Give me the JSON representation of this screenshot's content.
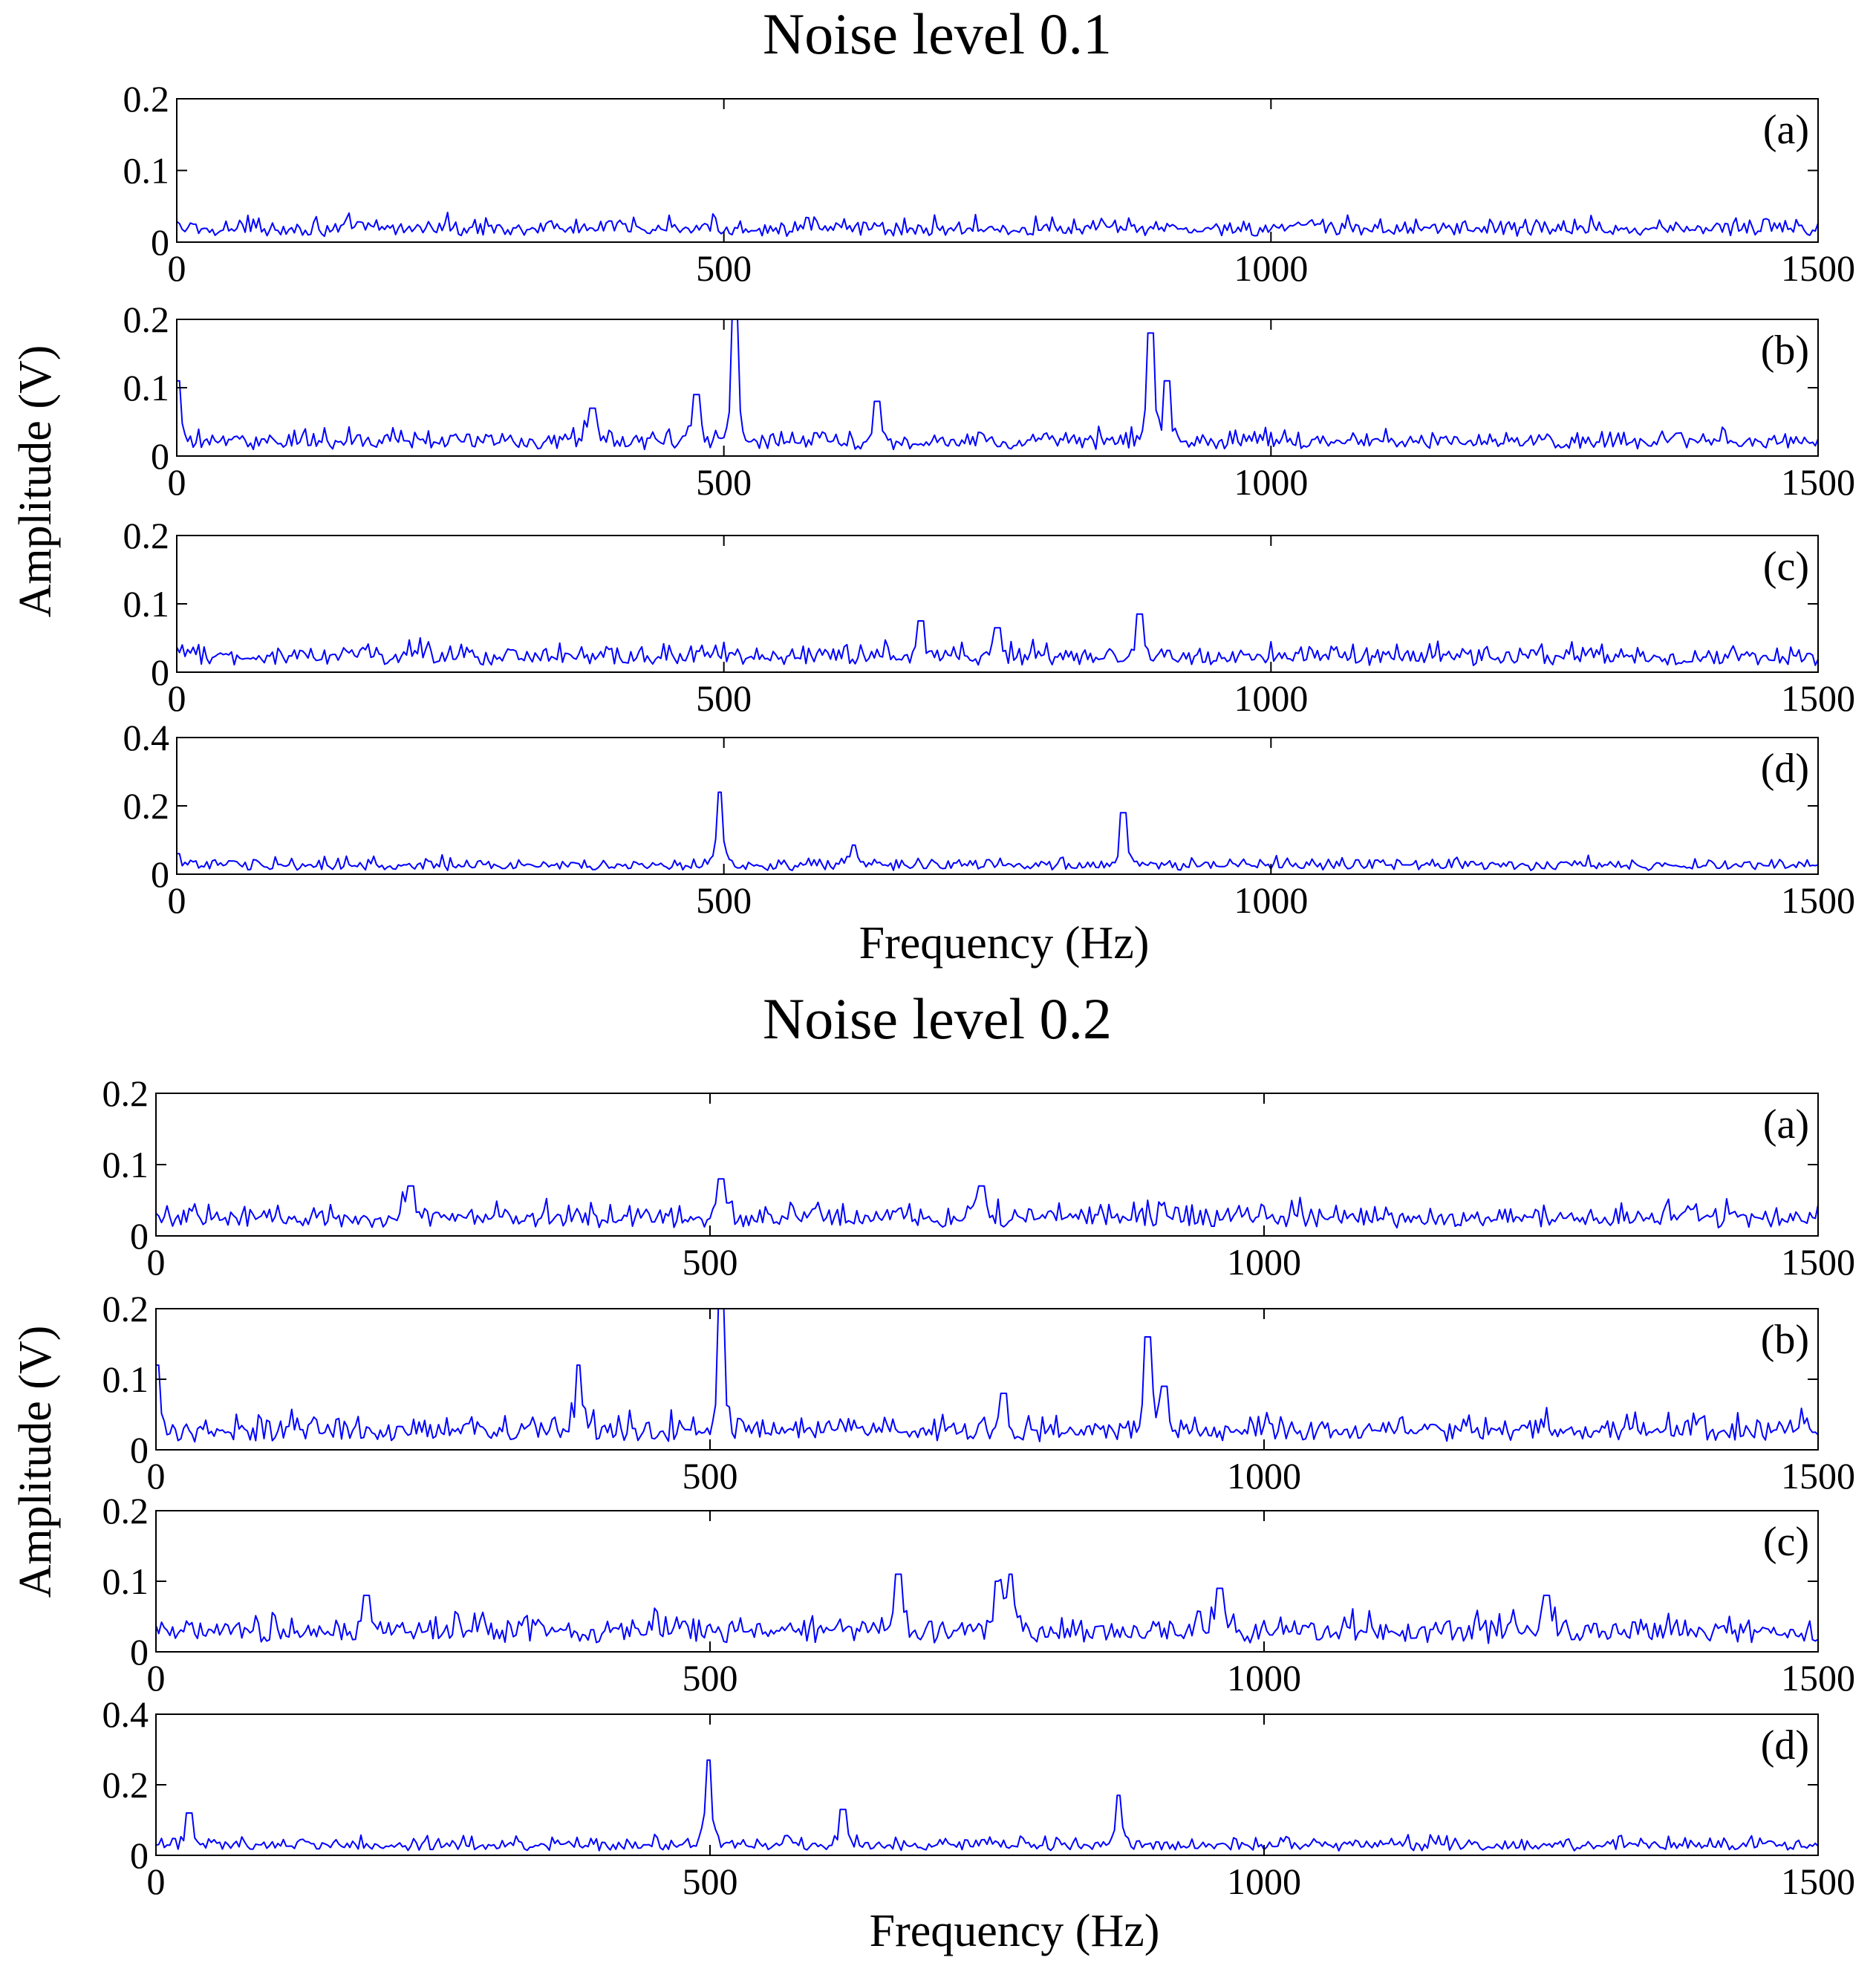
{
  "chart_data": [
    {
      "group": "noise-0.1",
      "title": "Noise level 0.1",
      "xlabel": "Frequency (Hz)",
      "ylabel": "Amplitude (V)",
      "type": "line",
      "line_color": "#0000ff",
      "xlim": [
        0,
        1500
      ],
      "xticks": [
        "0",
        "500",
        "1000",
        "1500"
      ],
      "panels": [
        {
          "label": "(a)",
          "ylim": [
            0,
            0.2
          ],
          "yticks": [
            "0",
            "0.1",
            "0.2"
          ],
          "noise": 0.022,
          "peaks": []
        },
        {
          "label": "(b)",
          "ylim": [
            0,
            0.2
          ],
          "yticks": [
            "0",
            "0.1",
            "0.2"
          ],
          "noise": 0.025,
          "peaks": [
            {
              "x": 0,
              "y": 0.11
            },
            {
              "x": 380,
              "y": 0.07
            },
            {
              "x": 475,
              "y": 0.09
            },
            {
              "x": 510,
              "y": 0.2
            },
            {
              "x": 640,
              "y": 0.08
            },
            {
              "x": 890,
              "y": 0.18
            },
            {
              "x": 905,
              "y": 0.11
            }
          ]
        },
        {
          "label": "(c)",
          "ylim": [
            0,
            0.2
          ],
          "yticks": [
            "0",
            "0.1",
            "0.2"
          ],
          "noise": 0.027,
          "peaks": [
            {
              "x": 680,
              "y": 0.075
            },
            {
              "x": 750,
              "y": 0.065
            },
            {
              "x": 880,
              "y": 0.085
            }
          ]
        },
        {
          "label": "(d)",
          "ylim": [
            0,
            0.4
          ],
          "yticks": [
            "0",
            "0.2",
            "0.4"
          ],
          "noise": 0.03,
          "peaks": [
            {
              "x": 0,
              "y": 0.06
            },
            {
              "x": 497,
              "y": 0.24
            },
            {
              "x": 618,
              "y": 0.085
            },
            {
              "x": 865,
              "y": 0.18
            }
          ]
        }
      ]
    },
    {
      "group": "noise-0.2",
      "title": "Noise level 0.2",
      "xlabel": "Frequency (Hz)",
      "ylabel": "Amplitude (V)",
      "type": "line",
      "line_color": "#0000ff",
      "xlim": [
        0,
        1500
      ],
      "xticks": [
        "0",
        "500",
        "1000",
        "1500"
      ],
      "panels": [
        {
          "label": "(a)",
          "ylim": [
            0,
            0.2
          ],
          "yticks": [
            "0",
            "0.1",
            "0.2"
          ],
          "noise": 0.03,
          "peaks": [
            {
              "x": 510,
              "y": 0.08
            },
            {
              "x": 745,
              "y": 0.07
            },
            {
              "x": 230,
              "y": 0.07
            }
          ]
        },
        {
          "label": "(b)",
          "ylim": [
            0,
            0.2
          ],
          "yticks": [
            "0",
            "0.1",
            "0.2"
          ],
          "noise": 0.032,
          "peaks": [
            {
              "x": 0,
              "y": 0.12
            },
            {
              "x": 382,
              "y": 0.12
            },
            {
              "x": 510,
              "y": 0.2
            },
            {
              "x": 765,
              "y": 0.08
            },
            {
              "x": 895,
              "y": 0.16
            },
            {
              "x": 910,
              "y": 0.09
            }
          ]
        },
        {
          "label": "(c)",
          "ylim": [
            0,
            0.2
          ],
          "yticks": [
            "0",
            "0.1",
            "0.2"
          ],
          "noise": 0.034,
          "peaks": [
            {
              "x": 190,
              "y": 0.08
            },
            {
              "x": 670,
              "y": 0.11
            },
            {
              "x": 760,
              "y": 0.1
            },
            {
              "x": 772,
              "y": 0.11
            },
            {
              "x": 960,
              "y": 0.09
            },
            {
              "x": 1255,
              "y": 0.08
            }
          ]
        },
        {
          "label": "(d)",
          "ylim": [
            0,
            0.4
          ],
          "yticks": [
            "0",
            "0.2",
            "0.4"
          ],
          "noise": 0.035,
          "peaks": [
            {
              "x": 30,
              "y": 0.12
            },
            {
              "x": 498,
              "y": 0.27
            },
            {
              "x": 620,
              "y": 0.13
            },
            {
              "x": 868,
              "y": 0.17
            }
          ]
        }
      ]
    }
  ]
}
